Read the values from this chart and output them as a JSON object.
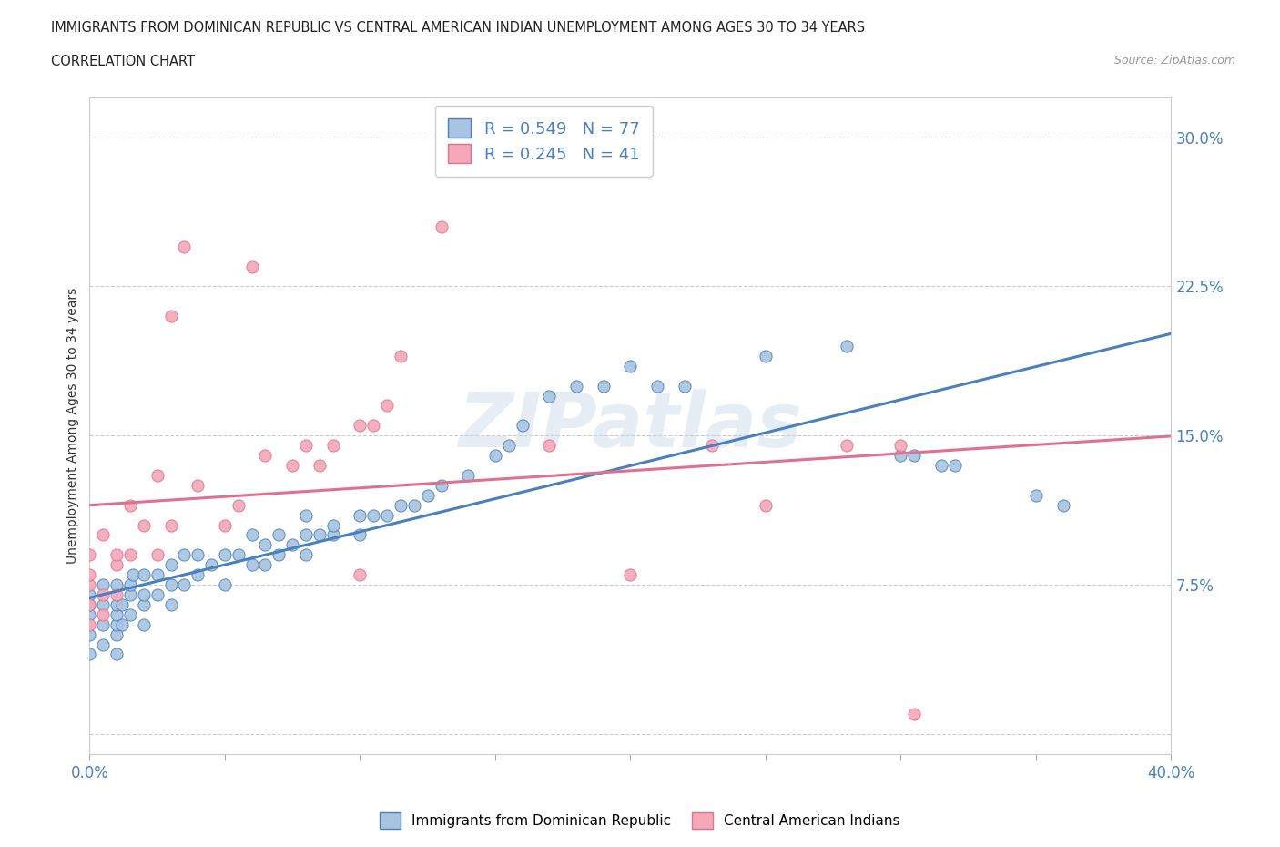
{
  "title_line1": "IMMIGRANTS FROM DOMINICAN REPUBLIC VS CENTRAL AMERICAN INDIAN UNEMPLOYMENT AMONG AGES 30 TO 34 YEARS",
  "title_line2": "CORRELATION CHART",
  "source_text": "Source: ZipAtlas.com",
  "ylabel": "Unemployment Among Ages 30 to 34 years",
  "xlim": [
    0.0,
    0.4
  ],
  "ylim": [
    -0.01,
    0.32
  ],
  "xticks": [
    0.0,
    0.05,
    0.1,
    0.15,
    0.2,
    0.25,
    0.3,
    0.35,
    0.4
  ],
  "yticks": [
    0.0,
    0.075,
    0.15,
    0.225,
    0.3
  ],
  "blue_R": 0.549,
  "blue_N": 77,
  "pink_R": 0.245,
  "pink_N": 41,
  "blue_color": "#a8c4e0",
  "pink_color": "#f4a8b8",
  "blue_line_color": "#4a7fc0",
  "pink_line_color": "#e07090",
  "watermark_text": "ZIPatlas",
  "legend_label_blue": "Immigrants from Dominican Republic",
  "legend_label_pink": "Central American Indians",
  "blue_scatter_x": [
    0.0,
    0.0,
    0.0,
    0.0,
    0.0,
    0.005,
    0.005,
    0.005,
    0.005,
    0.01,
    0.01,
    0.01,
    0.01,
    0.01,
    0.01,
    0.012,
    0.012,
    0.015,
    0.015,
    0.015,
    0.016,
    0.02,
    0.02,
    0.02,
    0.02,
    0.025,
    0.025,
    0.03,
    0.03,
    0.03,
    0.035,
    0.035,
    0.04,
    0.04,
    0.045,
    0.05,
    0.05,
    0.055,
    0.06,
    0.06,
    0.065,
    0.065,
    0.07,
    0.07,
    0.075,
    0.08,
    0.08,
    0.08,
    0.085,
    0.09,
    0.09,
    0.1,
    0.1,
    0.105,
    0.11,
    0.115,
    0.12,
    0.125,
    0.13,
    0.14,
    0.15,
    0.155,
    0.16,
    0.17,
    0.18,
    0.19,
    0.2,
    0.21,
    0.22,
    0.25,
    0.28,
    0.3,
    0.305,
    0.315,
    0.32,
    0.35,
    0.36
  ],
  "blue_scatter_y": [
    0.04,
    0.05,
    0.06,
    0.065,
    0.07,
    0.045,
    0.055,
    0.065,
    0.075,
    0.04,
    0.05,
    0.055,
    0.06,
    0.065,
    0.075,
    0.055,
    0.065,
    0.06,
    0.07,
    0.075,
    0.08,
    0.055,
    0.065,
    0.07,
    0.08,
    0.07,
    0.08,
    0.065,
    0.075,
    0.085,
    0.075,
    0.09,
    0.08,
    0.09,
    0.085,
    0.075,
    0.09,
    0.09,
    0.085,
    0.1,
    0.085,
    0.095,
    0.09,
    0.1,
    0.095,
    0.09,
    0.1,
    0.11,
    0.1,
    0.1,
    0.105,
    0.1,
    0.11,
    0.11,
    0.11,
    0.115,
    0.115,
    0.12,
    0.125,
    0.13,
    0.14,
    0.145,
    0.155,
    0.17,
    0.175,
    0.175,
    0.185,
    0.175,
    0.175,
    0.19,
    0.195,
    0.14,
    0.14,
    0.135,
    0.135,
    0.12,
    0.115
  ],
  "pink_scatter_x": [
    0.0,
    0.0,
    0.0,
    0.0,
    0.0,
    0.005,
    0.005,
    0.005,
    0.01,
    0.01,
    0.01,
    0.015,
    0.015,
    0.02,
    0.025,
    0.025,
    0.03,
    0.03,
    0.035,
    0.04,
    0.05,
    0.055,
    0.06,
    0.065,
    0.075,
    0.08,
    0.085,
    0.09,
    0.1,
    0.1,
    0.105,
    0.11,
    0.115,
    0.13,
    0.17,
    0.2,
    0.23,
    0.25,
    0.28,
    0.3,
    0.305
  ],
  "pink_scatter_y": [
    0.055,
    0.065,
    0.075,
    0.08,
    0.09,
    0.06,
    0.07,
    0.1,
    0.07,
    0.085,
    0.09,
    0.09,
    0.115,
    0.105,
    0.09,
    0.13,
    0.105,
    0.21,
    0.245,
    0.125,
    0.105,
    0.115,
    0.235,
    0.14,
    0.135,
    0.145,
    0.135,
    0.145,
    0.08,
    0.155,
    0.155,
    0.165,
    0.19,
    0.255,
    0.145,
    0.08,
    0.145,
    0.115,
    0.145,
    0.145,
    0.01
  ]
}
